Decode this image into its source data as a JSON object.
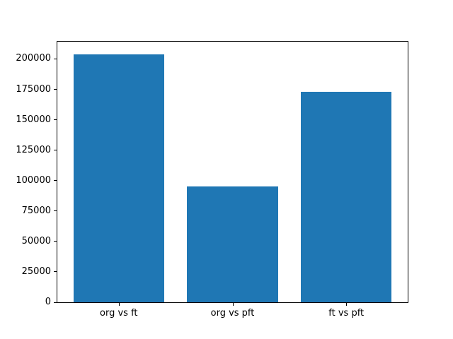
{
  "figure": {
    "background_color": "#ffffff",
    "spine_color": "#000000"
  },
  "chart_data": {
    "type": "bar",
    "title": "",
    "xlabel": "",
    "ylabel": "",
    "categories": [
      "org vs ft",
      "org vs pft",
      "ft vs pft"
    ],
    "values": [
      204000,
      95000,
      173000
    ],
    "ylim": [
      0,
      214200
    ],
    "yticks": [
      0,
      25000,
      50000,
      75000,
      100000,
      125000,
      150000,
      175000,
      200000
    ],
    "bar_color": "#1f77b4",
    "grid": false,
    "legend_position": "none"
  }
}
